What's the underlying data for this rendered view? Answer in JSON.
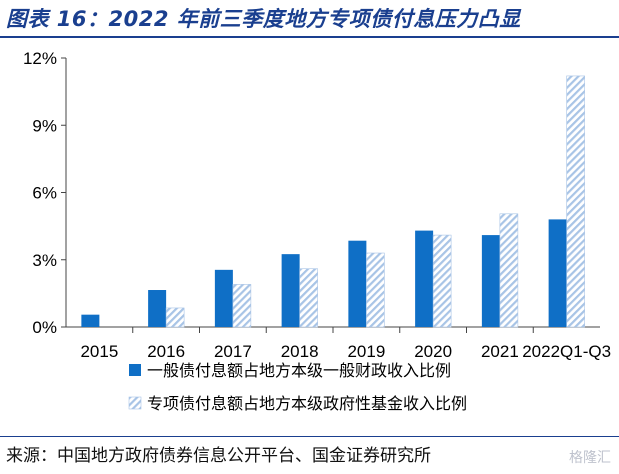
{
  "title": "图表 16：2022 年前三季度地方专项债付息压力凸显",
  "source": "来源：中国地方政府债券信息公开平台、国金证券研究所",
  "watermark": "格隆汇",
  "chart_data": {
    "type": "bar",
    "categories": [
      "2015",
      "2016",
      "2017",
      "2018",
      "2019",
      "2020",
      "2021",
      "2022Q1-Q3"
    ],
    "series": [
      {
        "name": "一般债付息额占地方本级一般财政收入比例",
        "values": [
          0.55,
          1.65,
          2.55,
          3.25,
          3.85,
          4.3,
          4.1,
          4.8
        ],
        "color": "#0f6fc6",
        "pattern": "solid"
      },
      {
        "name": "专项债付息额占地方本级政府性基金收入比例",
        "values": [
          0.0,
          0.85,
          1.9,
          2.6,
          3.3,
          4.1,
          5.05,
          11.2
        ],
        "color": "#a8c4e6",
        "pattern": "hatched"
      }
    ],
    "yticks": [
      "0%",
      "3%",
      "6%",
      "9%",
      "12%"
    ],
    "ylim": [
      0,
      12
    ],
    "unit": "%",
    "legend_position": "bottom",
    "grid": false
  }
}
